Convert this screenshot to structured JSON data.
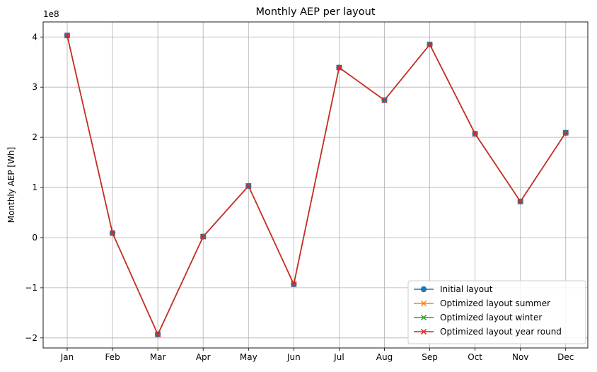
{
  "chart_data": {
    "type": "line",
    "title": "Monthly AEP per layout",
    "xlabel": "",
    "ylabel": "Monthly AEP [Wh]",
    "y_scale_label": "1e8",
    "categories": [
      "Jan",
      "Feb",
      "Mar",
      "Apr",
      "May",
      "Jun",
      "Jul",
      "Aug",
      "Sep",
      "Oct",
      "Nov",
      "Dec"
    ],
    "ylim": [
      -2.2,
      4.3
    ],
    "y_unit_multiplier": 100000000,
    "yticks": [
      -2,
      -1,
      0,
      1,
      2,
      3,
      4
    ],
    "ytick_labels": [
      "−2",
      "−1",
      "0",
      "1",
      "2",
      "3",
      "4"
    ],
    "grid": true,
    "legend_position": "lower-right",
    "series": [
      {
        "name": "Initial layout",
        "color": "#1f77b4",
        "marker": "circle",
        "values": [
          4.03,
          0.09,
          -1.93,
          0.02,
          1.03,
          -0.93,
          3.39,
          2.74,
          3.85,
          2.07,
          0.72,
          2.09
        ]
      },
      {
        "name": "Optimized layout summer",
        "color": "#ff7f0e",
        "marker": "x",
        "values": [
          4.03,
          0.09,
          -1.93,
          0.02,
          1.03,
          -0.93,
          3.39,
          2.74,
          3.85,
          2.07,
          0.72,
          2.09
        ]
      },
      {
        "name": "Optimized layout winter",
        "color": "#2ca02c",
        "marker": "x",
        "values": [
          4.03,
          0.09,
          -1.93,
          0.02,
          1.03,
          -0.93,
          3.39,
          2.74,
          3.85,
          2.07,
          0.72,
          2.09
        ]
      },
      {
        "name": "Optimized layout year round",
        "color": "#d62728",
        "marker": "x",
        "values": [
          4.03,
          0.09,
          -1.93,
          0.02,
          1.03,
          -0.93,
          3.39,
          2.74,
          3.85,
          2.07,
          0.72,
          2.09
        ]
      }
    ]
  }
}
